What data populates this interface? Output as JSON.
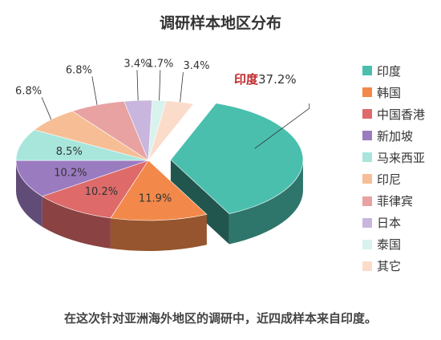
{
  "title": "调研样本地区分布",
  "footnote": "在这次针对亚洲海外地区的调研中，近四成样本来自印度。",
  "chart_data": {
    "type": "pie",
    "title": "调研样本地区分布",
    "unit": "%",
    "legend_position": "right",
    "slices": [
      {
        "name": "印度",
        "value": 37.2,
        "label": "37.2%",
        "color": "#4ABFAE"
      },
      {
        "name": "韩国",
        "value": 11.9,
        "label": "11.9%",
        "color": "#F2894A"
      },
      {
        "name": "中国香港",
        "value": 10.2,
        "label": "10.2%",
        "color": "#DE6A6A"
      },
      {
        "name": "新加坡",
        "value": 10.2,
        "label": "10.2%",
        "color": "#9B7BC0"
      },
      {
        "name": "马来西亚",
        "value": 8.5,
        "label": "8.5%",
        "color": "#A8E6DC"
      },
      {
        "name": "印尼",
        "value": 6.8,
        "label": "6.8%",
        "color": "#F7BE95"
      },
      {
        "name": "菲律宾",
        "value": 6.8,
        "label": "6.8%",
        "color": "#E8A2A2"
      },
      {
        "name": "日本",
        "value": 3.4,
        "label": "3.4%",
        "color": "#C9B6DE"
      },
      {
        "name": "泰国",
        "value": 1.7,
        "label": "1.7%",
        "color": "#D8F2EE"
      },
      {
        "name": "其它",
        "value": 3.4,
        "label": "3.4%",
        "color": "#FBDCCB"
      }
    ],
    "highlight": {
      "name": "印度",
      "color": "#C0282D"
    }
  }
}
